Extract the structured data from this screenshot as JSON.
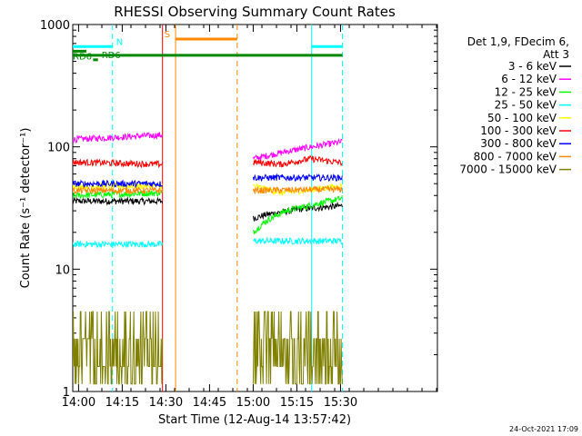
{
  "chart_data": {
    "type": "line",
    "title": "RHESSI Observing Summary Count Rates",
    "xlabel": "Start Time (12-Aug-14 13:57:42)",
    "ylabel": "Count Rate (s⁻¹ detector⁻¹)",
    "ylim": [
      1,
      1000
    ],
    "yscale": "log",
    "xlim": [
      "13:57:42",
      "16:03:00"
    ],
    "x_ticks": [
      "14:00",
      "14:15",
      "14:30",
      "14:45",
      "15:00",
      "15:15",
      "15:30"
    ],
    "x_ticks_min": [
      120,
      1020,
      1920,
      2820,
      3720,
      4620,
      5520
    ],
    "y_ticks": [
      "1",
      "10",
      "100",
      "1000"
    ],
    "legend_header": [
      "Det 1,9, FDecim 6,",
      "Att 3"
    ],
    "legend_position": "right",
    "footer_date": "24-Oct-2021 17:09",
    "series": [
      {
        "name": "3 - 6 keV",
        "color": "#000000",
        "segments": [
          {
            "t0": 0,
            "t1": 1850,
            "points": [
              [
                0,
                36
              ],
              [
                1850,
                36
              ]
            ]
          },
          {
            "t0": 3720,
            "t1": 5560,
            "points": [
              [
                3720,
                26
              ],
              [
                4000,
                28
              ],
              [
                4700,
                31
              ],
              [
                5560,
                33
              ]
            ]
          }
        ]
      },
      {
        "name": "6 - 12 keV",
        "color": "#ff00ff",
        "segments": [
          {
            "t0": 0,
            "t1": 1850,
            "points": [
              [
                0,
                115
              ],
              [
                1850,
                125
              ]
            ]
          },
          {
            "t0": 3720,
            "t1": 5560,
            "points": [
              [
                3720,
                80
              ],
              [
                4200,
                88
              ],
              [
                4800,
                98
              ],
              [
                5560,
                110
              ]
            ]
          }
        ]
      },
      {
        "name": "12 - 25 keV",
        "color": "#00ff00",
        "segments": [
          {
            "t0": 0,
            "t1": 1850,
            "points": [
              [
                0,
                40
              ],
              [
                1850,
                42
              ]
            ]
          },
          {
            "t0": 3720,
            "t1": 5560,
            "points": [
              [
                3720,
                20
              ],
              [
                4000,
                25
              ],
              [
                4400,
                30
              ],
              [
                5000,
                34
              ],
              [
                5560,
                38
              ]
            ]
          }
        ]
      },
      {
        "name": "25 - 50 keV",
        "color": "#00ffff",
        "segments": [
          {
            "t0": 0,
            "t1": 1850,
            "points": [
              [
                0,
                16
              ],
              [
                1850,
                16
              ]
            ]
          },
          {
            "t0": 3720,
            "t1": 5560,
            "points": [
              [
                3720,
                17
              ],
              [
                5560,
                17
              ]
            ]
          }
        ]
      },
      {
        "name": "50 - 100 keV",
        "color": "#ffff00",
        "segments": [
          {
            "t0": 0,
            "t1": 1850,
            "points": [
              [
                0,
                48
              ],
              [
                1850,
                48
              ]
            ]
          },
          {
            "t0": 3720,
            "t1": 5560,
            "points": [
              [
                3720,
                48
              ],
              [
                4300,
                42
              ],
              [
                5000,
                45
              ],
              [
                5560,
                48
              ]
            ]
          }
        ]
      },
      {
        "name": "100 - 300 keV",
        "color": "#ff0000",
        "segments": [
          {
            "t0": 0,
            "t1": 1850,
            "points": [
              [
                0,
                75
              ],
              [
                1850,
                72
              ]
            ]
          },
          {
            "t0": 3720,
            "t1": 5560,
            "points": [
              [
                3720,
                75
              ],
              [
                4300,
                72
              ],
              [
                4900,
                80
              ],
              [
                5560,
                74
              ]
            ]
          }
        ]
      },
      {
        "name": "300 - 800 keV",
        "color": "#0000ff",
        "segments": [
          {
            "t0": 0,
            "t1": 1850,
            "points": [
              [
                0,
                50
              ],
              [
                1850,
                50
              ]
            ]
          },
          {
            "t0": 3720,
            "t1": 5560,
            "points": [
              [
                3720,
                56
              ],
              [
                5560,
                56
              ]
            ]
          }
        ]
      },
      {
        "name": "800 - 7000 keV",
        "color": "#ff8800",
        "segments": [
          {
            "t0": 0,
            "t1": 1850,
            "points": [
              [
                0,
                44
              ],
              [
                1850,
                44
              ]
            ]
          },
          {
            "t0": 3720,
            "t1": 5560,
            "points": [
              [
                3720,
                44
              ],
              [
                5560,
                45
              ]
            ]
          }
        ]
      },
      {
        "name": "7000 - 15000 keV",
        "color": "#808000",
        "segments": [
          {
            "t0": 0,
            "t1": 1850,
            "points": [
              [
                0,
                2.5
              ],
              [
                1850,
                2.5
              ]
            ]
          },
          {
            "t0": 3720,
            "t1": 5560,
            "points": [
              [
                3720,
                2.5
              ],
              [
                5560,
                2.5
              ]
            ]
          }
        ]
      }
    ],
    "flags": [
      {
        "label": "N",
        "color": "#00ffff",
        "t0": 0,
        "t1": 820,
        "level": 660
      },
      {
        "label": "",
        "color": "#00ffff",
        "t0": 4925,
        "t1": 5560,
        "level": 660
      },
      {
        "label": "",
        "color": "#008800",
        "t0": 0,
        "t1": 5560,
        "level": 560
      },
      {
        "label": "S",
        "color": "#ff8800",
        "t0": 2120,
        "t1": 3390,
        "level": 760
      },
      {
        "label": "RD6",
        "color": "#008800",
        "t0": 0,
        "t1": 280,
        "level": 605
      },
      {
        "label": "RD6",
        "color": "#008800",
        "t0": 420,
        "t1": 520,
        "level": 515
      }
    ],
    "vlines": [
      {
        "t": 820,
        "color": "#00ffff",
        "dashed": true
      },
      {
        "t": 4925,
        "color": "#00ffff",
        "dashed": false
      },
      {
        "t": 5560,
        "color": "#00ffff",
        "dashed": true
      },
      {
        "t": 2120,
        "color": "#ff8800",
        "dashed": false
      },
      {
        "t": 3390,
        "color": "#ff8800",
        "dashed": true
      },
      {
        "t": 1850,
        "color": "#ff0000",
        "dashed": false
      }
    ]
  }
}
